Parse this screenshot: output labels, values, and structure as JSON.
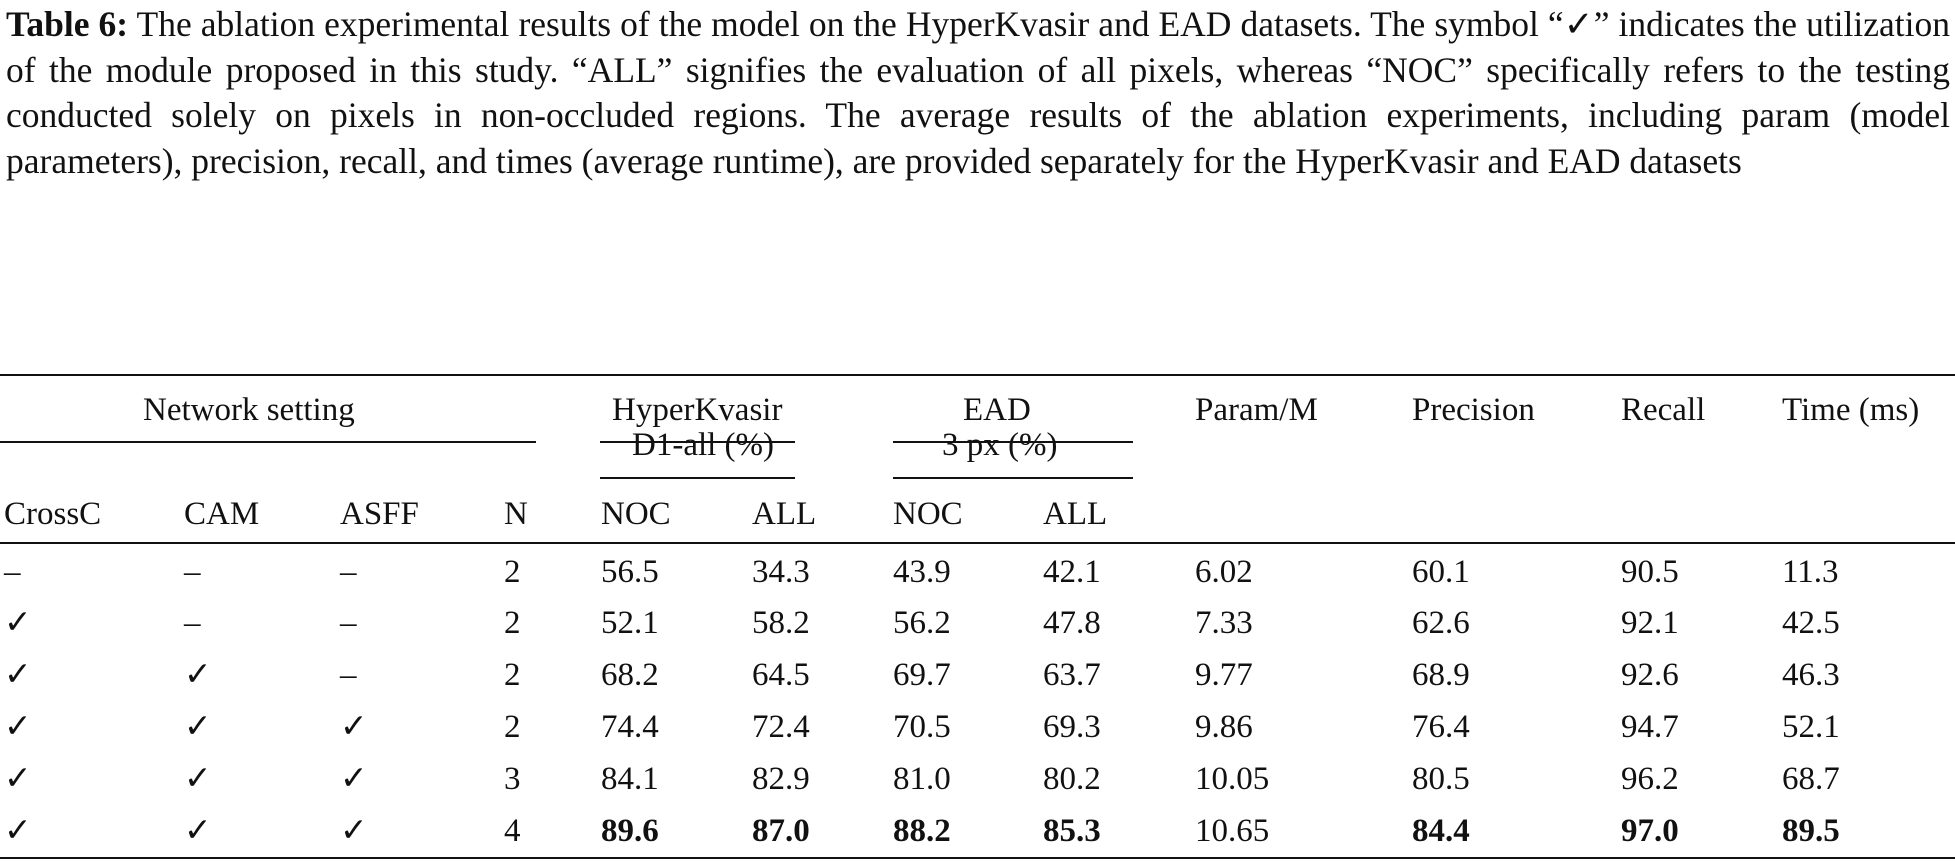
{
  "caption": {
    "label": "Table 6:",
    "text": " The ablation experimental results of the model on the HyperKvasir and EAD datasets. The symbol “✓” indicates the utilization of the module proposed in this study. “ALL” signifies the evaluation of all pixels, whereas “NOC” specifically refers to the testing conducted solely on pixels in non-occluded regions. The average results of the ablation experiments, including param (model parameters), precision, recall, and times (average runtime), are provided separately for the HyperKvasir and EAD datasets"
  },
  "table": {
    "group_headers": {
      "network": "Network setting",
      "hyperkvasir": "HyperKvasir",
      "ead": "EAD",
      "param": "Param/M",
      "precision": "Precision",
      "recall": "Recall",
      "time": "Time (ms)"
    },
    "metric_headers": {
      "hyperkvasir": "D1-all (%)",
      "ead": "3 px (%)"
    },
    "column_headers": [
      "CrossC",
      "CAM",
      "ASFF",
      "N",
      "NOC",
      "ALL",
      "NOC",
      "ALL"
    ],
    "rows": [
      [
        "–",
        "–",
        "–",
        "2",
        "56.5",
        "34.3",
        "43.9",
        "42.1",
        "6.02",
        "60.1",
        "90.5",
        "11.3"
      ],
      [
        "✓",
        "–",
        "–",
        "2",
        "52.1",
        "58.2",
        "56.2",
        "47.8",
        "7.33",
        "62.6",
        "92.1",
        "42.5"
      ],
      [
        "✓",
        "✓",
        "–",
        "2",
        "68.2",
        "64.5",
        "69.7",
        "63.7",
        "9.77",
        "68.9",
        "92.6",
        "46.3"
      ],
      [
        "✓",
        "✓",
        "✓",
        "2",
        "74.4",
        "72.4",
        "70.5",
        "69.3",
        "9.86",
        "76.4",
        "94.7",
        "52.1"
      ],
      [
        "✓",
        "✓",
        "✓",
        "3",
        "84.1",
        "82.9",
        "81.0",
        "80.2",
        "10.05",
        "80.5",
        "96.2",
        "68.7"
      ],
      [
        "✓",
        "✓",
        "✓",
        "4",
        "89.6",
        "87.0",
        "88.2",
        "85.3",
        "10.65",
        "84.4",
        "97.0",
        "89.5"
      ]
    ],
    "bold_cells_last_row": [
      4,
      5,
      6,
      7,
      9,
      10,
      11
    ]
  }
}
